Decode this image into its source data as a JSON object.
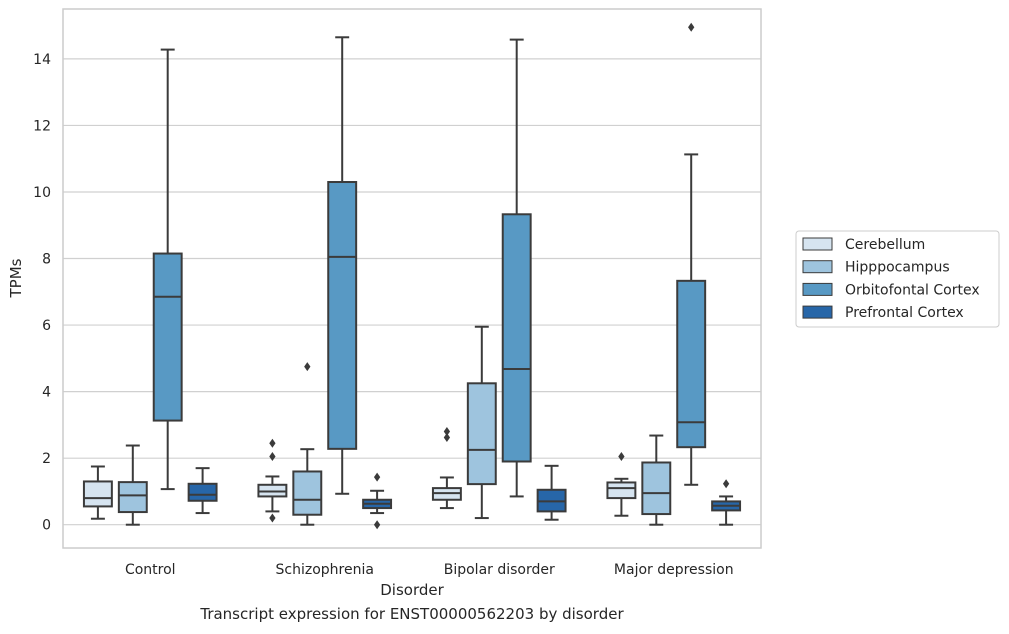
{
  "caption": "Transcript expression for ENST00000562203 by disorder",
  "chart_data": {
    "type": "box",
    "xlabel": "Disorder",
    "ylabel": "TPMs",
    "ylim": [
      -0.7,
      15.5
    ],
    "yticks": [
      0,
      2,
      4,
      6,
      8,
      10,
      12,
      14
    ],
    "grid": "horizontal",
    "legend_position": "right",
    "categories": [
      "Control",
      "Schizophrenia",
      "Bipolar disorder",
      "Major depression"
    ],
    "series": [
      {
        "name": "Cerebellum",
        "color": "#d6e4f0",
        "boxes": [
          {
            "whislo": 0.18,
            "q1": 0.55,
            "med": 0.8,
            "q3": 1.3,
            "whishi": 1.75,
            "fliers": []
          },
          {
            "whislo": 0.4,
            "q1": 0.85,
            "med": 1.0,
            "q3": 1.2,
            "whishi": 1.45,
            "fliers": [
              2.45,
              2.05,
              0.2
            ]
          },
          {
            "whislo": 0.5,
            "q1": 0.75,
            "med": 0.95,
            "q3": 1.1,
            "whishi": 1.42,
            "fliers": [
              2.8,
              2.62
            ]
          },
          {
            "whislo": 0.27,
            "q1": 0.8,
            "med": 1.1,
            "q3": 1.27,
            "whishi": 1.38,
            "fliers": [
              2.05
            ]
          }
        ]
      },
      {
        "name": "Hipppocampus",
        "color": "#9ec4de",
        "boxes": [
          {
            "whislo": 0.0,
            "q1": 0.38,
            "med": 0.88,
            "q3": 1.28,
            "whishi": 2.38,
            "fliers": []
          },
          {
            "whislo": 0.0,
            "q1": 0.3,
            "med": 0.75,
            "q3": 1.6,
            "whishi": 2.27,
            "fliers": [
              4.75
            ]
          },
          {
            "whislo": 0.2,
            "q1": 1.22,
            "med": 2.25,
            "q3": 4.25,
            "whishi": 5.95,
            "fliers": []
          },
          {
            "whislo": 0.0,
            "q1": 0.32,
            "med": 0.95,
            "q3": 1.87,
            "whishi": 2.68,
            "fliers": []
          }
        ]
      },
      {
        "name": "Orbitofontal Cortex",
        "color": "#5899c4",
        "boxes": [
          {
            "whislo": 1.07,
            "q1": 3.13,
            "med": 6.85,
            "q3": 8.15,
            "whishi": 14.28,
            "fliers": []
          },
          {
            "whislo": 0.93,
            "q1": 2.28,
            "med": 8.05,
            "q3": 10.3,
            "whishi": 14.65,
            "fliers": []
          },
          {
            "whislo": 0.85,
            "q1": 1.9,
            "med": 4.68,
            "q3": 9.33,
            "whishi": 14.58,
            "fliers": []
          },
          {
            "whislo": 1.2,
            "q1": 2.33,
            "med": 3.08,
            "q3": 7.33,
            "whishi": 11.13,
            "fliers": [
              14.95
            ]
          }
        ]
      },
      {
        "name": "Prefrontal Cortex",
        "color": "#2766a8",
        "boxes": [
          {
            "whislo": 0.35,
            "q1": 0.72,
            "med": 0.9,
            "q3": 1.23,
            "whishi": 1.7,
            "fliers": []
          },
          {
            "whislo": 0.35,
            "q1": 0.5,
            "med": 0.63,
            "q3": 0.75,
            "whishi": 1.02,
            "fliers": [
              1.43,
              0.0
            ]
          },
          {
            "whislo": 0.15,
            "q1": 0.4,
            "med": 0.7,
            "q3": 1.05,
            "whishi": 1.77,
            "fliers": []
          },
          {
            "whislo": 0.0,
            "q1": 0.43,
            "med": 0.57,
            "q3": 0.7,
            "whishi": 0.85,
            "fliers": [
              1.23
            ]
          }
        ]
      }
    ]
  }
}
